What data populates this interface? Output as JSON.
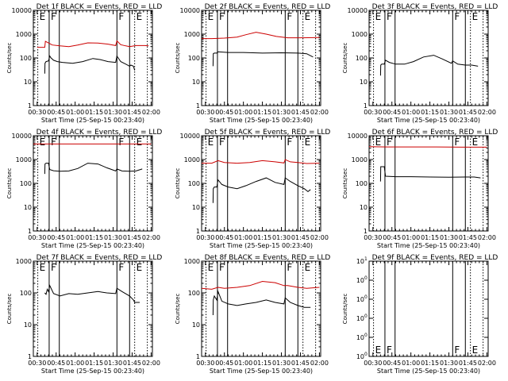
{
  "figure": {
    "background": "#ffffff",
    "events_color": "#000000",
    "lld_color": "#cc0000",
    "xlabel": "Start Time (25-Sep-15 00:23:40)",
    "ylabel": "Counts/sec",
    "xtick_labels": [
      "00:30",
      "00:45",
      "01:00",
      "01:15",
      "01:30",
      "01:45",
      "02:00"
    ],
    "xlim_minutes": [
      27,
      121
    ]
  },
  "chart_data": [
    {
      "type": "line",
      "title": "Det 1f BLACK = Events, RED = LLD",
      "xlabel": "Start Time (25-Sep-15 00:23:40)",
      "ylabel": "Counts/sec",
      "scale": "log",
      "ylim": [
        1,
        10000
      ],
      "ytick_labels": [
        "1",
        "10",
        "100",
        "1000",
        "10000"
      ],
      "event_markers": [
        {
          "label": "E",
          "t": 30.5,
          "style": "dotted"
        },
        {
          "label": "F",
          "t": 39.5,
          "style": "solid"
        },
        {
          "label": "",
          "t": 47.5,
          "style": "solid"
        },
        {
          "label": "F",
          "t": 93,
          "style": "solid"
        },
        {
          "label": "",
          "t": 103,
          "style": "solid"
        },
        {
          "label": "E",
          "t": 107,
          "style": "dotted"
        },
        {
          "label": "",
          "t": 117,
          "style": "dotted"
        }
      ],
      "series": [
        {
          "name": "LLD",
          "color": "#cc0000",
          "x": [
            30,
            36,
            36.5,
            42,
            48,
            55,
            62,
            70,
            78,
            86,
            92,
            93,
            96,
            100,
            103,
            108,
            115,
            118
          ],
          "y": [
            280,
            280,
            500,
            350,
            320,
            300,
            350,
            430,
            420,
            380,
            330,
            520,
            360,
            320,
            300,
            330,
            330,
            320
          ]
        },
        {
          "name": "Events",
          "color": "#000000",
          "x": [
            36,
            36.2,
            37,
            39,
            40,
            41,
            43,
            46,
            50,
            58,
            66,
            74,
            80,
            86,
            92,
            93,
            96,
            100,
            103,
            104,
            106,
            107
          ],
          "y": [
            22,
            60,
            70,
            75,
            120,
            100,
            80,
            70,
            65,
            60,
            70,
            95,
            85,
            70,
            65,
            120,
            70,
            55,
            45,
            50,
            45,
            30
          ]
        }
      ]
    },
    {
      "type": "line",
      "title": "Det 2f BLACK = Events, RED = LLD",
      "xlabel": "Start Time (25-Sep-15 00:23:40)",
      "ylabel": "Counts/sec",
      "scale": "log",
      "ylim": [
        1,
        10000
      ],
      "ytick_labels": [
        "1",
        "10",
        "100",
        "1000",
        "10000"
      ],
      "event_markers": [
        {
          "label": "E",
          "t": 30.5,
          "style": "dotted"
        },
        {
          "label": "F",
          "t": 39.5,
          "style": "solid"
        },
        {
          "label": "",
          "t": 47.5,
          "style": "solid"
        },
        {
          "label": "F",
          "t": 93,
          "style": "solid"
        },
        {
          "label": "",
          "t": 103,
          "style": "solid"
        },
        {
          "label": "E",
          "t": 107,
          "style": "dotted"
        },
        {
          "label": "",
          "t": 117,
          "style": "dotted"
        }
      ],
      "series": [
        {
          "name": "LLD",
          "color": "#cc0000",
          "x": [
            27,
            35,
            45,
            55,
            62,
            70,
            78,
            86,
            95,
            105,
            120
          ],
          "y": [
            650,
            650,
            680,
            750,
            950,
            1200,
            1000,
            800,
            700,
            700,
            720
          ]
        },
        {
          "name": "Events",
          "color": "#000000",
          "x": [
            36,
            36.2,
            37,
            39,
            40,
            48,
            60,
            75,
            90,
            103,
            110,
            115
          ],
          "y": [
            45,
            150,
            160,
            160,
            180,
            170,
            170,
            160,
            165,
            160,
            150,
            110
          ]
        }
      ]
    },
    {
      "type": "line",
      "title": "Det 3f BLACK = Events, RED = LLD",
      "xlabel": "Start Time (25-Sep-15 00:23:40)",
      "ylabel": "Counts/sec",
      "scale": "log",
      "ylim": [
        1,
        10000
      ],
      "ytick_labels": [
        "1",
        "10",
        "100",
        "1000",
        "10000"
      ],
      "event_markers": [
        {
          "label": "E",
          "t": 30.5,
          "style": "dotted"
        },
        {
          "label": "F",
          "t": 39.5,
          "style": "solid"
        },
        {
          "label": "",
          "t": 47.5,
          "style": "solid"
        },
        {
          "label": "F",
          "t": 93,
          "style": "solid"
        },
        {
          "label": "",
          "t": 103,
          "style": "solid"
        },
        {
          "label": "E",
          "t": 107,
          "style": "dotted"
        },
        {
          "label": "",
          "t": 117,
          "style": "dotted"
        }
      ],
      "series": [
        {
          "name": "Events",
          "color": "#000000",
          "x": [
            36,
            36.2,
            37,
            39,
            40,
            43,
            48,
            55,
            62,
            70,
            78,
            85,
            92,
            93,
            97,
            103,
            108,
            113
          ],
          "y": [
            18,
            50,
            55,
            55,
            80,
            65,
            55,
            55,
            70,
            110,
            130,
            90,
            60,
            75,
            55,
            50,
            50,
            45
          ]
        }
      ]
    },
    {
      "type": "line",
      "title": "Det 4f BLACK = Events, RED = LLD",
      "xlabel": "Start Time (25-Sep-15 00:23:40)",
      "ylabel": "Counts/sec",
      "scale": "log",
      "ylim": [
        1,
        10000
      ],
      "ytick_labels": [
        "1",
        "10",
        "100",
        "1000",
        "10000"
      ],
      "event_markers": [
        {
          "label": "E",
          "t": 30.5,
          "style": "dotted"
        },
        {
          "label": "F",
          "t": 39.5,
          "style": "solid"
        },
        {
          "label": "",
          "t": 47.5,
          "style": "solid"
        },
        {
          "label": "F",
          "t": 93,
          "style": "solid"
        },
        {
          "label": "",
          "t": 103,
          "style": "solid"
        },
        {
          "label": "E",
          "t": 107,
          "style": "dotted"
        },
        {
          "label": "",
          "t": 117,
          "style": "dotted"
        }
      ],
      "series": [
        {
          "name": "LLD",
          "color": "#cc0000",
          "x": [
            27,
            40,
            60,
            80,
            100,
            120
          ],
          "y": [
            4500,
            4500,
            4500,
            4500,
            4500,
            4500
          ]
        },
        {
          "name": "Events",
          "color": "#000000",
          "x": [
            36,
            36.2,
            37,
            39,
            40,
            43,
            48,
            55,
            62,
            70,
            78,
            85,
            92,
            93,
            97,
            103,
            108,
            113
          ],
          "y": [
            250,
            650,
            700,
            700,
            380,
            340,
            320,
            330,
            420,
            700,
            650,
            450,
            330,
            400,
            330,
            320,
            330,
            400
          ]
        }
      ]
    },
    {
      "type": "line",
      "title": "Det 5f BLACK = Events, RED = LLD",
      "xlabel": "Start Time (25-Sep-15 00:23:40)",
      "ylabel": "Counts/sec",
      "scale": "log",
      "ylim": [
        1,
        10000
      ],
      "ytick_labels": [
        "1",
        "10",
        "100",
        "1000",
        "10000"
      ],
      "event_markers": [
        {
          "label": "E",
          "t": 30.5,
          "style": "dotted"
        },
        {
          "label": "F",
          "t": 39.5,
          "style": "solid"
        },
        {
          "label": "",
          "t": 47.5,
          "style": "solid"
        },
        {
          "label": "F",
          "t": 93,
          "style": "solid"
        },
        {
          "label": "",
          "t": 103,
          "style": "solid"
        },
        {
          "label": "E",
          "t": 107,
          "style": "dotted"
        },
        {
          "label": "",
          "t": 117,
          "style": "dotted"
        }
      ],
      "series": [
        {
          "name": "LLD",
          "color": "#cc0000",
          "x": [
            27,
            35,
            40,
            45,
            55,
            65,
            75,
            85,
            92,
            93,
            97,
            103,
            110,
            120
          ],
          "y": [
            700,
            700,
            900,
            750,
            700,
            750,
            900,
            800,
            720,
            1000,
            800,
            750,
            680,
            700
          ]
        },
        {
          "name": "Events",
          "color": "#000000",
          "x": [
            36,
            36.2,
            37,
            39,
            40,
            43,
            48,
            55,
            62,
            70,
            78,
            85,
            92,
            93,
            97,
            103,
            108,
            111,
            113
          ],
          "y": [
            15,
            60,
            70,
            70,
            140,
            90,
            70,
            60,
            80,
            120,
            170,
            110,
            90,
            170,
            120,
            80,
            60,
            45,
            55
          ]
        }
      ]
    },
    {
      "type": "line",
      "title": "Det 6f BLACK = Events, RED = LLD",
      "xlabel": "Start Time (25-Sep-15 00:23:40)",
      "ylabel": "Counts/sec",
      "scale": "log",
      "ylim": [
        1,
        10000
      ],
      "ytick_labels": [
        "1",
        "10",
        "100",
        "1000",
        "10000"
      ],
      "event_markers": [
        {
          "label": "E",
          "t": 30.5,
          "style": "dotted"
        },
        {
          "label": "F",
          "t": 39.5,
          "style": "solid"
        },
        {
          "label": "",
          "t": 47.5,
          "style": "solid"
        },
        {
          "label": "F",
          "t": 93,
          "style": "solid"
        },
        {
          "label": "",
          "t": 103,
          "style": "solid"
        },
        {
          "label": "E",
          "t": 107,
          "style": "dotted"
        },
        {
          "label": "",
          "t": 117,
          "style": "dotted"
        }
      ],
      "series": [
        {
          "name": "LLD",
          "color": "#cc0000",
          "x": [
            27,
            40,
            60,
            80,
            100,
            120
          ],
          "y": [
            3500,
            3400,
            3400,
            3400,
            3300,
            3300
          ]
        },
        {
          "name": "Events",
          "color": "#000000",
          "x": [
            36,
            36.2,
            37,
            39,
            40,
            48,
            60,
            75,
            90,
            103,
            110,
            115
          ],
          "y": [
            120,
            500,
            500,
            500,
            200,
            190,
            190,
            185,
            180,
            185,
            185,
            170
          ]
        }
      ]
    },
    {
      "type": "line",
      "title": "Det 7f BLACK = Events, RED = LLD",
      "xlabel": "Start Time (25-Sep-15 00:23:40)",
      "ylabel": "Counts/sec",
      "scale": "log",
      "ylim": [
        1,
        1000
      ],
      "ytick_labels": [
        "1",
        "10",
        "100",
        "1000"
      ],
      "event_markers": [
        {
          "label": "E",
          "t": 30.5,
          "style": "dotted"
        },
        {
          "label": "F",
          "t": 39.5,
          "style": "solid"
        },
        {
          "label": "",
          "t": 47.5,
          "style": "solid"
        },
        {
          "label": "F",
          "t": 93,
          "style": "solid"
        },
        {
          "label": "",
          "t": 103,
          "style": "solid"
        },
        {
          "label": "E",
          "t": 107,
          "style": "dotted"
        },
        {
          "label": "",
          "t": 117,
          "style": "dotted"
        }
      ],
      "series": [
        {
          "name": "Events",
          "color": "#000000",
          "x": [
            36,
            37,
            38,
            39,
            40,
            43,
            48,
            55,
            62,
            70,
            78,
            85,
            92,
            93,
            97,
            103,
            106,
            107,
            111
          ],
          "y": [
            100,
            90,
            130,
            110,
            170,
            95,
            80,
            95,
            90,
            100,
            110,
            100,
            95,
            140,
            110,
            80,
            60,
            50,
            50
          ]
        }
      ]
    },
    {
      "type": "line",
      "title": "Det 8f BLACK = Events, RED = LLD",
      "xlabel": "Start Time (25-Sep-15 00:23:40)",
      "ylabel": "Counts/sec",
      "scale": "log",
      "ylim": [
        1,
        1000
      ],
      "ytick_labels": [
        "1",
        "10",
        "100",
        "1000"
      ],
      "event_markers": [
        {
          "label": "E",
          "t": 30.5,
          "style": "dotted"
        },
        {
          "label": "F",
          "t": 39.5,
          "style": "solid"
        },
        {
          "label": "",
          "t": 47.5,
          "style": "solid"
        },
        {
          "label": "F",
          "t": 93,
          "style": "solid"
        },
        {
          "label": "",
          "t": 103,
          "style": "solid"
        },
        {
          "label": "E",
          "t": 107,
          "style": "dotted"
        },
        {
          "label": "",
          "t": 117,
          "style": "dotted"
        }
      ],
      "series": [
        {
          "name": "LLD",
          "color": "#cc0000",
          "x": [
            27,
            35,
            40,
            45,
            55,
            65,
            75,
            85,
            92,
            95,
            103,
            110,
            120
          ],
          "y": [
            140,
            130,
            150,
            140,
            150,
            170,
            230,
            210,
            170,
            170,
            150,
            140,
            150
          ]
        },
        {
          "name": "Events",
          "color": "#000000",
          "x": [
            36,
            36.2,
            37,
            39,
            40,
            43,
            48,
            55,
            62,
            70,
            78,
            85,
            92,
            93,
            97,
            103,
            108,
            113
          ],
          "y": [
            20,
            60,
            80,
            60,
            110,
            55,
            45,
            40,
            45,
            50,
            60,
            50,
            45,
            70,
            50,
            40,
            35,
            35
          ]
        }
      ]
    },
    {
      "type": "line",
      "title": "Det 9f BLACK = Events, RED = LLD",
      "xlabel": "Start Time (25-Sep-15 00:23:40)",
      "ylabel": "Counts/sec",
      "scale": "log",
      "ylim": [
        1,
        10
      ],
      "ytick_exponents": [
        "0",
        "0",
        "0",
        "0",
        "0",
        "1"
      ],
      "event_markers": [
        {
          "label": "E",
          "t": 30.5,
          "style": "dotted"
        },
        {
          "label": "F",
          "t": 39.5,
          "style": "solid"
        },
        {
          "label": "",
          "t": 47.5,
          "style": "solid"
        },
        {
          "label": "F",
          "t": 93,
          "style": "solid"
        },
        {
          "label": "",
          "t": 103,
          "style": "solid"
        },
        {
          "label": "E",
          "t": 107,
          "style": "dotted"
        },
        {
          "label": "",
          "t": 117,
          "style": "dotted"
        }
      ],
      "series": []
    }
  ]
}
